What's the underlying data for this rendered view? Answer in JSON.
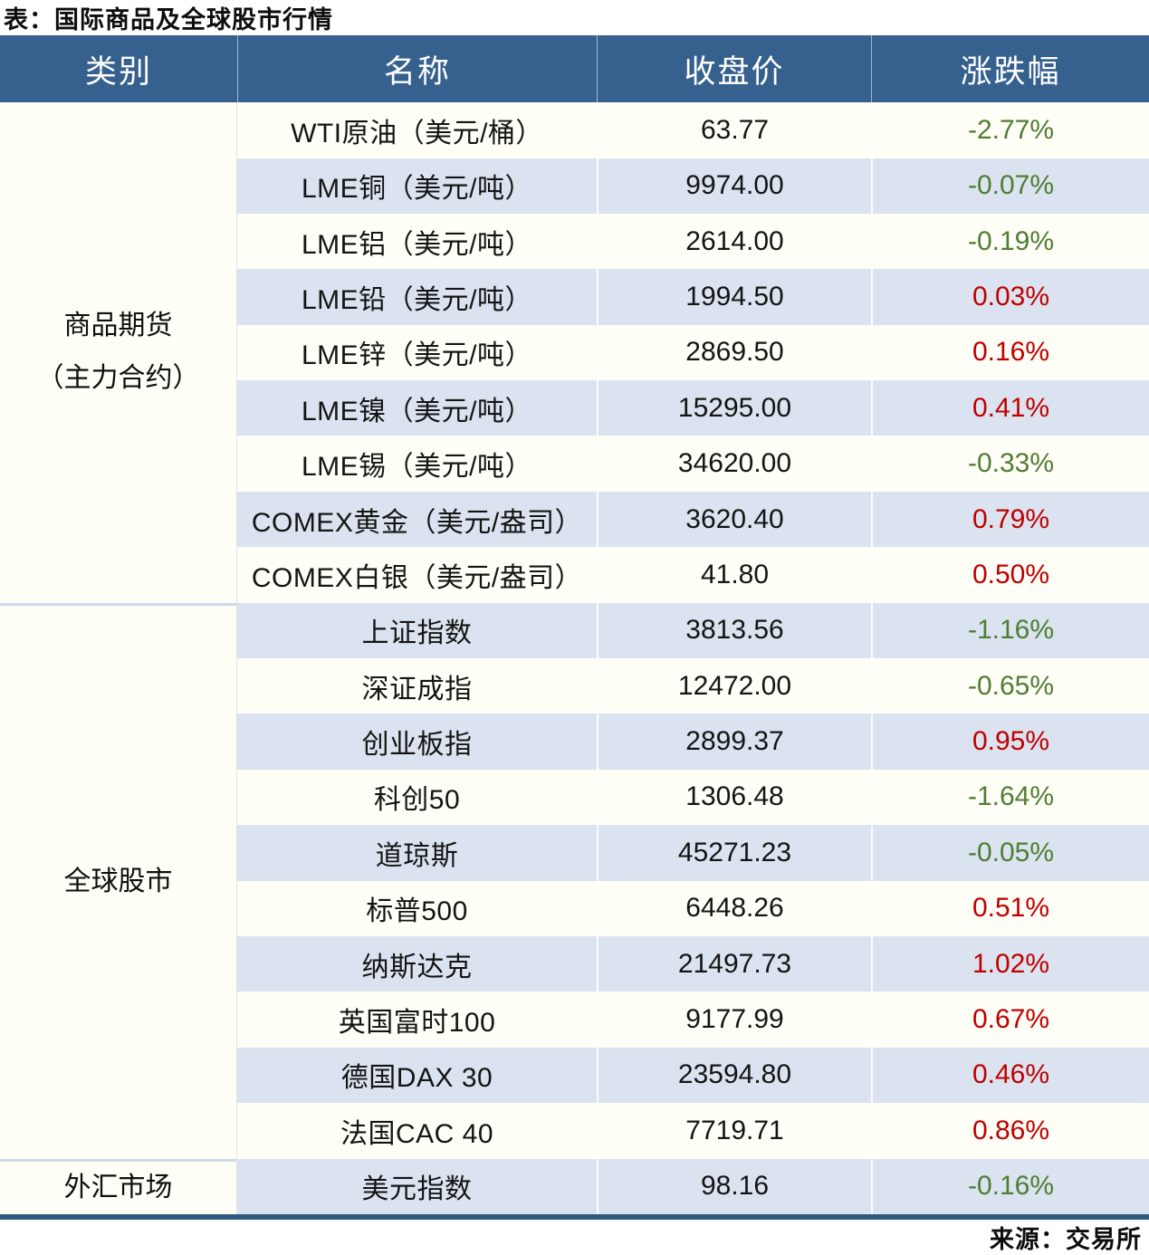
{
  "colors": {
    "header_bg": "#36618E",
    "row_alt": "#DAE3EF",
    "row_plain": "#FFFEF7",
    "positive_change": "#C00000",
    "negative_change": "#4F7D32",
    "bottom_rule": "#31597F"
  },
  "chart_data": {
    "type": "table",
    "title": "表：国际商品及全球股市行情",
    "source": "来源：交易所",
    "columns": [
      "类别",
      "名称",
      "收盘价",
      "涨跌幅"
    ],
    "groups": [
      {
        "category_lines": [
          "商品期货",
          "（主力合约）"
        ],
        "rows": [
          {
            "name": "WTI原油（美元/桶）",
            "close": "63.77",
            "change": "-2.77%",
            "direction": "down"
          },
          {
            "name": "LME铜（美元/吨）",
            "close": "9974.00",
            "change": "-0.07%",
            "direction": "down"
          },
          {
            "name": "LME铝（美元/吨）",
            "close": "2614.00",
            "change": "-0.19%",
            "direction": "down"
          },
          {
            "name": "LME铅（美元/吨）",
            "close": "1994.50",
            "change": "0.03%",
            "direction": "up"
          },
          {
            "name": "LME锌（美元/吨）",
            "close": "2869.50",
            "change": "0.16%",
            "direction": "up"
          },
          {
            "name": "LME镍（美元/吨）",
            "close": "15295.00",
            "change": "0.41%",
            "direction": "up"
          },
          {
            "name": "LME锡（美元/吨）",
            "close": "34620.00",
            "change": "-0.33%",
            "direction": "down"
          },
          {
            "name": "COMEX黄金（美元/盎司）",
            "close": "3620.40",
            "change": "0.79%",
            "direction": "up"
          },
          {
            "name": "COMEX白银（美元/盎司）",
            "close": "41.80",
            "change": "0.50%",
            "direction": "up"
          }
        ]
      },
      {
        "category_lines": [
          "全球股市"
        ],
        "rows": [
          {
            "name": "上证指数",
            "close": "3813.56",
            "change": "-1.16%",
            "direction": "down"
          },
          {
            "name": "深证成指",
            "close": "12472.00",
            "change": "-0.65%",
            "direction": "down"
          },
          {
            "name": "创业板指",
            "close": "2899.37",
            "change": "0.95%",
            "direction": "up"
          },
          {
            "name": "科创50",
            "close": "1306.48",
            "change": "-1.64%",
            "direction": "down"
          },
          {
            "name": "道琼斯",
            "close": "45271.23",
            "change": "-0.05%",
            "direction": "down"
          },
          {
            "name": "标普500",
            "close": "6448.26",
            "change": "0.51%",
            "direction": "up"
          },
          {
            "name": "纳斯达克",
            "close": "21497.73",
            "change": "1.02%",
            "direction": "up"
          },
          {
            "name": "英国富时100",
            "close": "9177.99",
            "change": "0.67%",
            "direction": "up"
          },
          {
            "name": "德国DAX 30",
            "close": "23594.80",
            "change": "0.46%",
            "direction": "up"
          },
          {
            "name": "法国CAC 40",
            "close": "7719.71",
            "change": "0.86%",
            "direction": "up"
          }
        ]
      },
      {
        "category_lines": [
          "外汇市场"
        ],
        "rows": [
          {
            "name": "美元指数",
            "close": "98.16",
            "change": "-0.16%",
            "direction": "down"
          }
        ]
      }
    ]
  }
}
